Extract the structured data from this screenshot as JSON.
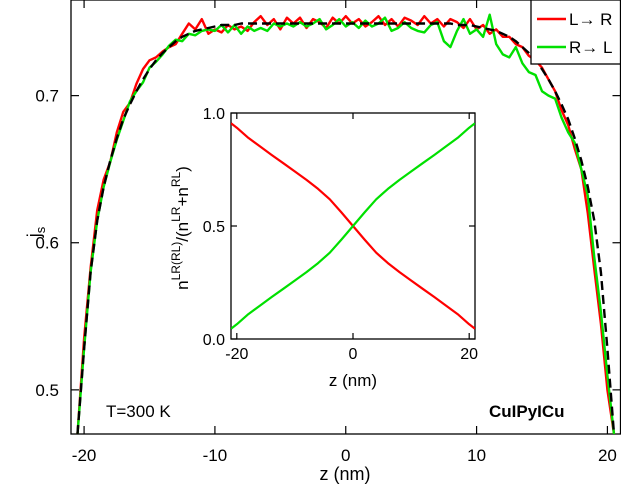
{
  "chart_data": [
    {
      "type": "line",
      "xlabel": "z (nm)",
      "ylabel": "j",
      "ylabel_subscript": "s",
      "xlim": [
        -21,
        21
      ],
      "ylim": [
        0.47,
        0.765
      ],
      "xticks": [
        -20,
        -10,
        0,
        10,
        20
      ],
      "xtick_labels": [
        "-20",
        "-10",
        "0",
        "10",
        "20"
      ],
      "yticks": [
        0.5,
        0.6,
        0.7
      ],
      "ytick_labels": [
        "0.5",
        "0.6",
        "0.7"
      ],
      "grid": false,
      "legend_position": "top-right",
      "series": [
        {
          "name": "L→ R",
          "color": "#ff0000",
          "x": [
            -20.5,
            -20.0,
            -19.5,
            -19.0,
            -18.5,
            -18.0,
            -17.5,
            -17.0,
            -16.5,
            -16.0,
            -15.5,
            -15.0,
            -14.5,
            -14.0,
            -13.5,
            -13.0,
            -12.5,
            -12.0,
            -11.5,
            -11.0,
            -10.5,
            -10.0,
            -9.5,
            -9.0,
            -8.5,
            -8.0,
            -7.5,
            -7.0,
            -6.5,
            -6.0,
            -5.5,
            -5.0,
            -4.5,
            -4.0,
            -3.5,
            -3.0,
            -2.5,
            -2.0,
            -1.5,
            -1.0,
            -0.5,
            0.0,
            0.5,
            1.0,
            1.5,
            2.0,
            2.5,
            3.0,
            3.5,
            4.0,
            4.5,
            5.0,
            5.5,
            6.0,
            6.5,
            7.0,
            7.5,
            8.0,
            8.5,
            9.0,
            9.5,
            10.0,
            10.5,
            11.0,
            11.5,
            12.0,
            12.5,
            13.0,
            13.5,
            14.0,
            14.5,
            15.0,
            15.5,
            16.0,
            16.5,
            17.0,
            17.5,
            18.0,
            18.5,
            19.0,
            19.5,
            20.0,
            20.5
          ],
          "y": [
            0.47,
            0.535,
            0.583,
            0.622,
            0.643,
            0.655,
            0.675,
            0.689,
            0.695,
            0.708,
            0.718,
            0.724,
            0.726,
            0.73,
            0.733,
            0.735,
            0.742,
            0.749,
            0.745,
            0.752,
            0.742,
            0.745,
            0.743,
            0.748,
            0.745,
            0.747,
            0.744,
            0.75,
            0.754,
            0.748,
            0.752,
            0.745,
            0.753,
            0.749,
            0.753,
            0.746,
            0.752,
            0.75,
            0.746,
            0.753,
            0.749,
            0.754,
            0.749,
            0.752,
            0.747,
            0.75,
            0.754,
            0.748,
            0.752,
            0.747,
            0.753,
            0.751,
            0.748,
            0.754,
            0.749,
            0.752,
            0.747,
            0.752,
            0.75,
            0.746,
            0.752,
            0.745,
            0.748,
            0.742,
            0.745,
            0.74,
            0.74,
            0.735,
            0.733,
            0.727,
            0.724,
            0.719,
            0.711,
            0.703,
            0.69,
            0.68,
            0.664,
            0.65,
            0.62,
            0.582,
            0.545,
            0.5,
            0.47
          ]
        },
        {
          "name": "R→ L",
          "color": "#00e000",
          "x": [
            -20.5,
            -20.0,
            -19.5,
            -19.0,
            -18.5,
            -18.0,
            -17.5,
            -17.0,
            -16.5,
            -16.0,
            -15.5,
            -15.0,
            -14.5,
            -14.0,
            -13.5,
            -13.0,
            -12.5,
            -12.0,
            -11.5,
            -11.0,
            -10.5,
            -10.0,
            -9.5,
            -9.0,
            -8.5,
            -8.0,
            -7.5,
            -7.0,
            -6.5,
            -6.0,
            -5.5,
            -5.0,
            -4.5,
            -4.0,
            -3.5,
            -3.0,
            -2.5,
            -2.0,
            -1.5,
            -1.0,
            -0.5,
            0.0,
            0.5,
            1.0,
            1.5,
            2.0,
            2.5,
            3.0,
            3.5,
            4.0,
            4.5,
            5.0,
            5.5,
            6.0,
            6.5,
            7.0,
            7.5,
            8.0,
            8.5,
            9.0,
            9.5,
            10.0,
            10.5,
            11.0,
            11.5,
            12.0,
            12.5,
            13.0,
            13.5,
            14.0,
            14.5,
            15.0,
            15.5,
            16.0,
            16.5,
            17.0,
            17.5,
            18.0,
            18.5,
            19.0,
            19.5,
            20.0,
            20.5
          ],
          "y": [
            0.47,
            0.528,
            0.58,
            0.615,
            0.638,
            0.655,
            0.67,
            0.683,
            0.696,
            0.703,
            0.709,
            0.719,
            0.723,
            0.728,
            0.734,
            0.738,
            0.737,
            0.742,
            0.741,
            0.744,
            0.745,
            0.744,
            0.748,
            0.743,
            0.748,
            0.742,
            0.747,
            0.744,
            0.746,
            0.744,
            0.749,
            0.747,
            0.749,
            0.747,
            0.75,
            0.747,
            0.749,
            0.752,
            0.745,
            0.748,
            0.752,
            0.747,
            0.75,
            0.746,
            0.751,
            0.747,
            0.749,
            0.753,
            0.744,
            0.746,
            0.75,
            0.746,
            0.744,
            0.743,
            0.748,
            0.75,
            0.737,
            0.733,
            0.744,
            0.752,
            0.742,
            0.745,
            0.74,
            0.755,
            0.735,
            0.728,
            0.726,
            0.733,
            0.722,
            0.716,
            0.714,
            0.703,
            0.7,
            0.698,
            0.685,
            0.675,
            0.668,
            0.65,
            0.632,
            0.59,
            0.553,
            0.51,
            0.47
          ]
        },
        {
          "name": "",
          "color": "#000000",
          "dash": "dashed",
          "x": [
            -20.5,
            -20.0,
            -19.5,
            -19.0,
            -18.5,
            -18.0,
            -17.5,
            -17.0,
            -16.5,
            -16.0,
            -15.5,
            -15.0,
            -14.5,
            -14.0,
            -13.5,
            -13.0,
            -12.5,
            -12.0,
            -11.5,
            -11.0,
            -10.5,
            -10.0,
            -9.5,
            -9.0,
            -8.5,
            -8.0,
            -7.5,
            -7.0,
            -6.5,
            -6.0,
            -5.5,
            -5.0,
            -4.5,
            -4.0,
            -3.5,
            -3.0,
            -2.5,
            -2.0,
            -1.5,
            -1.0,
            -0.5,
            0.0,
            0.5,
            1.0,
            1.5,
            2.0,
            2.5,
            3.0,
            3.5,
            4.0,
            4.5,
            5.0,
            5.5,
            6.0,
            6.5,
            7.0,
            7.5,
            8.0,
            8.5,
            9.0,
            9.5,
            10.0,
            10.5,
            11.0,
            11.5,
            12.0,
            12.5,
            13.0,
            13.5,
            14.0,
            14.5,
            15.0,
            15.5,
            16.0,
            16.5,
            17.0,
            17.5,
            18.0,
            18.5,
            19.0,
            19.5,
            20.0,
            20.5
          ],
          "y": [
            0.47,
            0.528,
            0.58,
            0.615,
            0.638,
            0.656,
            0.671,
            0.684,
            0.694,
            0.703,
            0.711,
            0.718,
            0.724,
            0.729,
            0.733,
            0.737,
            0.74,
            0.742,
            0.744,
            0.745,
            0.746,
            0.747,
            0.748,
            0.748,
            0.748,
            0.749,
            0.749,
            0.749,
            0.749,
            0.749,
            0.749,
            0.749,
            0.749,
            0.749,
            0.749,
            0.749,
            0.749,
            0.749,
            0.749,
            0.749,
            0.749,
            0.749,
            0.749,
            0.749,
            0.749,
            0.749,
            0.749,
            0.749,
            0.749,
            0.749,
            0.749,
            0.749,
            0.749,
            0.749,
            0.749,
            0.749,
            0.749,
            0.749,
            0.748,
            0.748,
            0.748,
            0.747,
            0.746,
            0.745,
            0.744,
            0.742,
            0.74,
            0.737,
            0.733,
            0.729,
            0.724,
            0.718,
            0.711,
            0.703,
            0.694,
            0.684,
            0.671,
            0.656,
            0.638,
            0.615,
            0.58,
            0.528,
            0.47
          ]
        }
      ],
      "annotations": [
        "T=300 K",
        "CuIPyICu"
      ]
    },
    {
      "type": "line",
      "xlabel": "z (nm)",
      "ylabel": "n^{LR(RL)}/(n^{LR}+n^{RL})",
      "xlim": [
        -21,
        21
      ],
      "ylim": [
        0,
        1
      ],
      "xticks": [
        -20,
        0,
        20
      ],
      "xtick_labels": [
        "-20",
        "0",
        "20"
      ],
      "yticks": [
        0,
        0.5,
        1
      ],
      "ytick_labels": [
        "0.0",
        "0.5",
        "1.0"
      ],
      "grid": false,
      "series": [
        {
          "name": "",
          "color": "#ff0000",
          "x": [
            -21,
            -20,
            -18,
            -16,
            -14,
            -12,
            -10,
            -8,
            -6,
            -4,
            -2,
            0,
            2,
            4,
            6,
            8,
            10,
            12,
            14,
            16,
            18,
            20,
            21
          ],
          "y": [
            0.955,
            0.935,
            0.89,
            0.852,
            0.814,
            0.778,
            0.741,
            0.704,
            0.664,
            0.618,
            0.56,
            0.5,
            0.44,
            0.382,
            0.336,
            0.296,
            0.259,
            0.222,
            0.186,
            0.148,
            0.11,
            0.065,
            0.045
          ]
        },
        {
          "name": "",
          "color": "#00e000",
          "x": [
            -21,
            -20,
            -18,
            -16,
            -14,
            -12,
            -10,
            -8,
            -6,
            -4,
            -2,
            0,
            2,
            4,
            6,
            8,
            10,
            12,
            14,
            16,
            18,
            20,
            21
          ],
          "y": [
            0.045,
            0.065,
            0.11,
            0.148,
            0.186,
            0.222,
            0.259,
            0.296,
            0.336,
            0.382,
            0.44,
            0.5,
            0.56,
            0.618,
            0.664,
            0.704,
            0.741,
            0.778,
            0.814,
            0.852,
            0.89,
            0.935,
            0.955
          ]
        }
      ]
    }
  ]
}
